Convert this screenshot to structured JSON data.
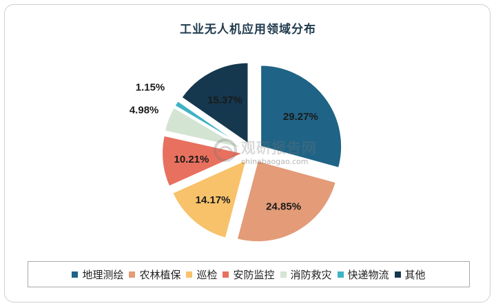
{
  "chart_data": {
    "type": "pie",
    "title": "工业无人机应用领域分布",
    "categories": [
      "地理测绘",
      "农林植保",
      "巡检",
      "安防监控",
      "消防救灾",
      "快递物流",
      "其他"
    ],
    "values": [
      29.27,
      24.85,
      14.17,
      10.21,
      4.98,
      1.15,
      15.37
    ],
    "labels": [
      "29.27%",
      "24.85%",
      "14.17%",
      "10.21%",
      "4.98%",
      "1.15%",
      "15.37%"
    ],
    "colors": [
      "#1f6386",
      "#e39b78",
      "#f8c26b",
      "#e8705f",
      "#d3e4d3",
      "#3fb3c5",
      "#15384f"
    ],
    "legend_position": "bottom",
    "exploded": true
  },
  "watermark": {
    "text": "观研报告网",
    "url": "chinabaogao.com"
  }
}
